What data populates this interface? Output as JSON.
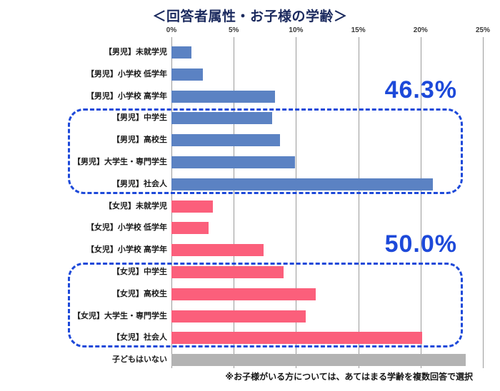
{
  "chart": {
    "title": "＜回答者属性・お子様の学齢＞",
    "footnote": "※お子様がいる方については、あてはまる学齢を複数回答で選択",
    "colors": {
      "bar_boys": "#5b82c3",
      "bar_girls": "#fb5f7b",
      "bar_none": "#b3b3b3",
      "highlight": "#1d49d9",
      "annotation": "#1d49d9",
      "title": "#1b2a5e",
      "grid": "#9b9b9b",
      "tick": "#3a3a3a",
      "label": "#1a1a1a"
    }
  },
  "chart_data": {
    "type": "bar",
    "orientation": "horizontal",
    "title": "＜回答者属性・お子様の学齢＞",
    "xlim": [
      0,
      25
    ],
    "xticks": [
      0,
      5,
      10,
      15,
      20,
      25
    ],
    "xtick_labels": [
      "0%",
      "5%",
      "10%",
      "15%",
      "20%",
      "25%"
    ],
    "grid": true,
    "legend": "none",
    "bars": [
      {
        "label": "【男児】未就学児",
        "value": 1.6,
        "group": "boys"
      },
      {
        "label": "【男児】小学校 低学年",
        "value": 2.5,
        "group": "boys"
      },
      {
        "label": "【男児】小学校 高学年",
        "value": 8.3,
        "group": "boys"
      },
      {
        "label": "【男児】中学生",
        "value": 8.1,
        "group": "boys"
      },
      {
        "label": "【男児】高校生",
        "value": 8.7,
        "group": "boys"
      },
      {
        "label": "【男児】大学生・専門学生",
        "value": 9.9,
        "group": "boys"
      },
      {
        "label": "【男児】社会人",
        "value": 21.0,
        "group": "boys"
      },
      {
        "label": "【女児】未就学児",
        "value": 3.3,
        "group": "girls"
      },
      {
        "label": "【女児】小学校 低学年",
        "value": 3.0,
        "group": "girls"
      },
      {
        "label": "【女児】小学校 高学年",
        "value": 7.4,
        "group": "girls"
      },
      {
        "label": "【女児】中学生",
        "value": 9.0,
        "group": "girls"
      },
      {
        "label": "【女児】高校生",
        "value": 11.6,
        "group": "girls"
      },
      {
        "label": "【女児】大学生・専門学生",
        "value": 10.8,
        "group": "girls"
      },
      {
        "label": "【女児】社会人",
        "value": 20.1,
        "group": "girls"
      },
      {
        "label": "子どもはいない",
        "value": 23.6,
        "group": "none"
      }
    ],
    "highlights": [
      {
        "rows": [
          3,
          6
        ],
        "group": "boys",
        "label": "46.3%"
      },
      {
        "rows": [
          10,
          13
        ],
        "group": "girls",
        "label": "50.0%"
      }
    ]
  }
}
